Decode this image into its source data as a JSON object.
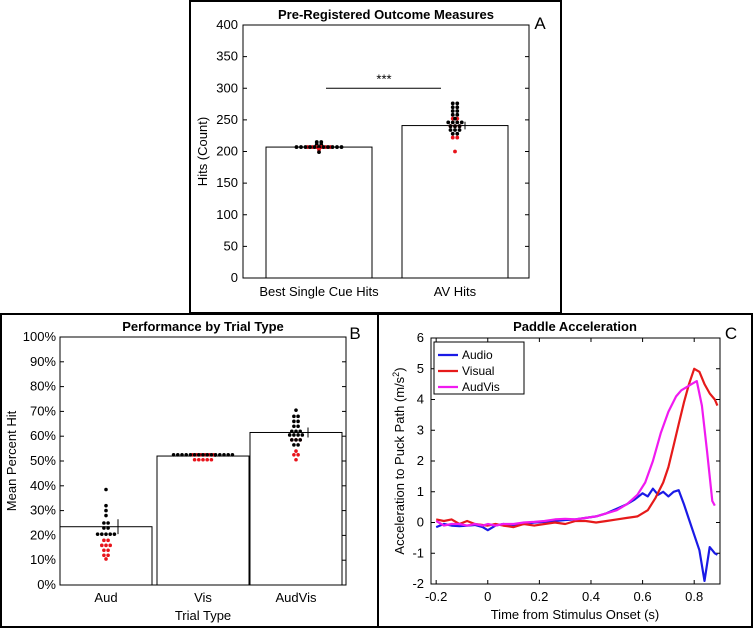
{
  "chart_data": [
    {
      "panel": "A",
      "type": "bar",
      "title": "Pre-Registered Outcome Measures",
      "ylabel": "Hits (Count)",
      "xlabel": "",
      "ylim": [
        0,
        400
      ],
      "yticks": [
        0,
        50,
        100,
        150,
        200,
        250,
        300,
        350,
        400
      ],
      "categories": [
        "Best Single Cue Hits",
        "AV Hits"
      ],
      "values": [
        207,
        241
      ],
      "error": [
        0,
        6
      ],
      "significance": {
        "label": "***",
        "between": [
          0,
          1
        ],
        "y": 300
      },
      "points": [
        [
          {
            "y": 215,
            "n": 2,
            "color": "black"
          },
          {
            "y": 211,
            "n": 2,
            "color": "black"
          },
          {
            "y": 207,
            "n": 6,
            "color": "red"
          },
          {
            "y": 207,
            "n": 11,
            "color": "black"
          },
          {
            "y": 203,
            "n": 1,
            "color": "red"
          },
          {
            "y": 199,
            "n": 1,
            "color": "black"
          }
        ],
        [
          {
            "y": 276,
            "n": 2,
            "color": "black"
          },
          {
            "y": 270,
            "n": 2,
            "color": "black"
          },
          {
            "y": 264,
            "n": 2,
            "color": "black"
          },
          {
            "y": 258,
            "n": 2,
            "color": "black"
          },
          {
            "y": 252,
            "n": 2,
            "color": "red"
          },
          {
            "y": 252,
            "n": 1,
            "color": "black"
          },
          {
            "y": 246,
            "n": 4,
            "color": "black"
          },
          {
            "y": 240,
            "n": 3,
            "color": "red"
          },
          {
            "y": 240,
            "n": 3,
            "color": "black"
          },
          {
            "y": 234,
            "n": 3,
            "color": "black"
          },
          {
            "y": 228,
            "n": 2,
            "color": "black"
          },
          {
            "y": 222,
            "n": 2,
            "color": "red"
          },
          {
            "y": 200,
            "n": 1,
            "color": "red"
          }
        ]
      ]
    },
    {
      "panel": "B",
      "type": "bar",
      "title": "Performance by Trial Type",
      "ylabel": "Mean Percent Hit",
      "xlabel": "Trial Type",
      "ylim": [
        0,
        100
      ],
      "yticks": [
        "0%",
        "10%",
        "20%",
        "30%",
        "40%",
        "50%",
        "60%",
        "70%",
        "80%",
        "90%",
        "100%"
      ],
      "categories": [
        "Aud",
        "Vis",
        "AudVis"
      ],
      "values": [
        23.5,
        52,
        61.5
      ],
      "error": [
        3,
        0.4,
        2
      ],
      "points": [
        [
          {
            "y": 38.5,
            "n": 1,
            "color": "black"
          },
          {
            "y": 32,
            "n": 1,
            "color": "black"
          },
          {
            "y": 30,
            "n": 1,
            "color": "black"
          },
          {
            "y": 28,
            "n": 1,
            "color": "black"
          },
          {
            "y": 25,
            "n": 2,
            "color": "black"
          },
          {
            "y": 23,
            "n": 2,
            "color": "black"
          },
          {
            "y": 20.5,
            "n": 5,
            "color": "black"
          },
          {
            "y": 18,
            "n": 2,
            "color": "red"
          },
          {
            "y": 16,
            "n": 3,
            "color": "red"
          },
          {
            "y": 14,
            "n": 2,
            "color": "red"
          },
          {
            "y": 12,
            "n": 2,
            "color": "red"
          },
          {
            "y": 10.5,
            "n": 1,
            "color": "red"
          }
        ],
        [
          {
            "y": 52.5,
            "n": 6,
            "color": "red"
          },
          {
            "y": 52.5,
            "n": 15,
            "color": "black"
          },
          {
            "y": 50.5,
            "n": 5,
            "color": "red"
          }
        ],
        [
          {
            "y": 70.5,
            "n": 1,
            "color": "black"
          },
          {
            "y": 68,
            "n": 2,
            "color": "black"
          },
          {
            "y": 66,
            "n": 2,
            "color": "black"
          },
          {
            "y": 64,
            "n": 2,
            "color": "black"
          },
          {
            "y": 62,
            "n": 3,
            "color": "black"
          },
          {
            "y": 60.5,
            "n": 4,
            "color": "black"
          },
          {
            "y": 58.5,
            "n": 3,
            "color": "red"
          },
          {
            "y": 58.5,
            "n": 3,
            "color": "black"
          },
          {
            "y": 56.5,
            "n": 2,
            "color": "black"
          },
          {
            "y": 54,
            "n": 1,
            "color": "red"
          },
          {
            "y": 52.5,
            "n": 2,
            "color": "red"
          },
          {
            "y": 50.5,
            "n": 1,
            "color": "red"
          }
        ]
      ]
    },
    {
      "panel": "C",
      "type": "line",
      "title": "Paddle Acceleration",
      "ylabel_main": "Acceleration to Puck Path (m/s",
      "ylabel_sup": "2",
      "ylabel_end": ")",
      "xlabel": "Time from Stimulus Onset (s)",
      "xlim": [
        -0.22,
        0.9
      ],
      "ylim": [
        -2,
        6
      ],
      "xticks": [
        -0.2,
        0,
        0.2,
        0.4,
        0.6,
        0.8
      ],
      "xtick_labels": [
        "-0.2",
        "0",
        "0.2",
        "0.4",
        "0.6",
        "0.8"
      ],
      "yticks": [
        -2,
        -1,
        0,
        1,
        2,
        3,
        4,
        5,
        6
      ],
      "legend_position": "top-left",
      "series": [
        {
          "name": "Audio",
          "color": "#1a1ae6",
          "x": [
            -0.2,
            -0.17,
            -0.14,
            -0.11,
            -0.08,
            -0.05,
            -0.02,
            0.0,
            0.03,
            0.06,
            0.1,
            0.14,
            0.18,
            0.22,
            0.26,
            0.3,
            0.34,
            0.38,
            0.42,
            0.46,
            0.5,
            0.54,
            0.57,
            0.6,
            0.62,
            0.64,
            0.66,
            0.68,
            0.7,
            0.72,
            0.74,
            0.76,
            0.78,
            0.8,
            0.82,
            0.84,
            0.86,
            0.87,
            0.88,
            0.89
          ],
          "y": [
            -0.15,
            -0.05,
            -0.1,
            -0.12,
            -0.1,
            -0.08,
            -0.15,
            -0.25,
            -0.1,
            -0.05,
            -0.08,
            -0.05,
            0.0,
            0.02,
            0.05,
            0.08,
            0.1,
            0.15,
            0.2,
            0.3,
            0.45,
            0.6,
            0.75,
            0.95,
            0.85,
            1.1,
            0.9,
            1.0,
            0.85,
            1.0,
            1.05,
            0.6,
            0.1,
            -0.4,
            -0.9,
            -1.9,
            -0.8,
            -0.9,
            -1.0,
            -1.05
          ]
        },
        {
          "name": "Visual",
          "color": "#e61a1a",
          "x": [
            -0.2,
            -0.17,
            -0.14,
            -0.11,
            -0.08,
            -0.05,
            -0.02,
            0.0,
            0.03,
            0.06,
            0.1,
            0.14,
            0.18,
            0.22,
            0.26,
            0.3,
            0.34,
            0.38,
            0.42,
            0.46,
            0.5,
            0.54,
            0.58,
            0.62,
            0.65,
            0.68,
            0.7,
            0.72,
            0.74,
            0.76,
            0.78,
            0.8,
            0.82,
            0.84,
            0.86,
            0.88,
            0.89
          ],
          "y": [
            0.1,
            0.05,
            0.1,
            -0.05,
            0.05,
            -0.05,
            -0.08,
            -0.1,
            -0.05,
            -0.1,
            -0.15,
            -0.05,
            -0.1,
            -0.05,
            0.0,
            -0.05,
            0.05,
            0.05,
            0.0,
            0.05,
            0.1,
            0.15,
            0.2,
            0.4,
            0.8,
            1.3,
            1.8,
            2.5,
            3.2,
            3.9,
            4.5,
            5.0,
            4.9,
            4.5,
            4.2,
            4.0,
            3.8
          ]
        },
        {
          "name": "AudVis",
          "color": "#f01af0",
          "x": [
            -0.2,
            -0.17,
            -0.14,
            -0.11,
            -0.08,
            -0.05,
            -0.02,
            0.0,
            0.03,
            0.06,
            0.1,
            0.14,
            0.18,
            0.22,
            0.26,
            0.3,
            0.34,
            0.38,
            0.42,
            0.46,
            0.5,
            0.54,
            0.58,
            0.61,
            0.64,
            0.67,
            0.7,
            0.73,
            0.75,
            0.77,
            0.79,
            0.81,
            0.83,
            0.85,
            0.87,
            0.88
          ],
          "y": [
            0.05,
            -0.1,
            -0.05,
            -0.05,
            -0.1,
            -0.05,
            -0.1,
            -0.05,
            -0.1,
            -0.05,
            -0.05,
            0.0,
            0.02,
            0.05,
            0.1,
            0.12,
            0.1,
            0.15,
            0.2,
            0.3,
            0.4,
            0.6,
            0.9,
            1.3,
            2.0,
            2.9,
            3.6,
            4.1,
            4.3,
            4.4,
            4.5,
            4.6,
            3.8,
            2.3,
            0.7,
            0.55
          ]
        }
      ]
    }
  ]
}
